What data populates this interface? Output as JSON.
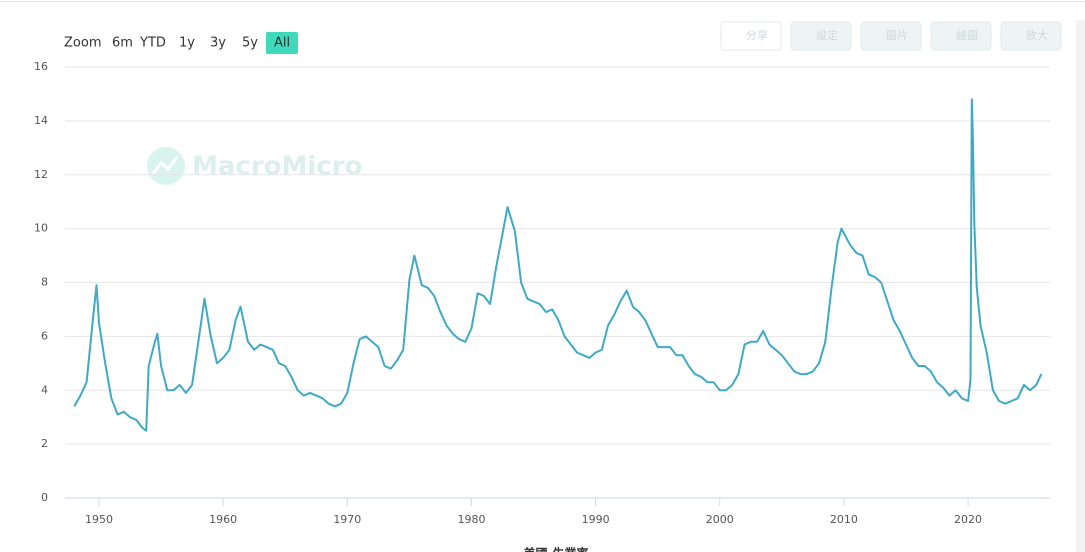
{
  "chart_data": {
    "type": "line",
    "zoom_label": "Zoom",
    "range_buttons": [
      "6m",
      "YTD",
      "1y",
      "3y",
      "5y",
      "All"
    ],
    "selected_range": "All",
    "toolbar_buttons": [
      "分享",
      "設定",
      "圖片",
      "繪圖",
      "放大"
    ],
    "watermark": "MacroMicro",
    "xlim": [
      1947.26,
      2026.6
    ],
    "xticks": [
      1950,
      1960,
      1970,
      1980,
      1990,
      2000,
      2010,
      2020
    ],
    "ylim": [
      0,
      16
    ],
    "yticks": [
      0,
      2,
      4,
      6,
      8,
      10,
      12,
      14,
      16
    ],
    "grid": true,
    "x": [
      1948.0,
      1948.5,
      1949.0,
      1949.5,
      1949.8,
      1950.0,
      1950.5,
      1951.0,
      1951.5,
      1952.0,
      1952.5,
      1953.0,
      1953.5,
      1953.8,
      1954.0,
      1954.5,
      1954.7,
      1955.0,
      1955.5,
      1956.0,
      1956.5,
      1957.0,
      1957.5,
      1958.0,
      1958.5,
      1959.0,
      1959.5,
      1960.0,
      1960.5,
      1961.0,
      1961.4,
      1962.0,
      1962.5,
      1963.0,
      1963.5,
      1964.0,
      1964.5,
      1965.0,
      1965.5,
      1966.0,
      1966.5,
      1967.0,
      1967.5,
      1968.0,
      1968.5,
      1969.0,
      1969.5,
      1970.0,
      1970.5,
      1971.0,
      1971.5,
      1972.0,
      1972.5,
      1973.0,
      1973.5,
      1974.0,
      1974.5,
      1975.0,
      1975.4,
      1976.0,
      1976.5,
      1977.0,
      1977.5,
      1978.0,
      1978.5,
      1979.0,
      1979.5,
      1980.0,
      1980.5,
      1981.0,
      1981.5,
      1982.0,
      1982.5,
      1982.9,
      1983.5,
      1984.0,
      1984.5,
      1985.0,
      1985.5,
      1986.0,
      1986.5,
      1987.0,
      1987.5,
      1988.0,
      1988.5,
      1989.0,
      1989.5,
      1990.0,
      1990.5,
      1991.0,
      1991.5,
      1992.0,
      1992.5,
      1993.0,
      1993.5,
      1994.0,
      1994.5,
      1995.0,
      1995.5,
      1996.0,
      1996.5,
      1997.0,
      1997.5,
      1998.0,
      1998.5,
      1999.0,
      1999.5,
      2000.0,
      2000.5,
      2001.0,
      2001.5,
      2002.0,
      2002.5,
      2003.0,
      2003.5,
      2004.0,
      2004.5,
      2005.0,
      2005.5,
      2006.0,
      2006.5,
      2007.0,
      2007.5,
      2008.0,
      2008.5,
      2009.0,
      2009.5,
      2009.8,
      2010.5,
      2011.0,
      2011.5,
      2012.0,
      2012.5,
      2013.0,
      2013.5,
      2014.0,
      2014.5,
      2015.0,
      2015.5,
      2016.0,
      2016.5,
      2017.0,
      2017.5,
      2018.0,
      2018.5,
      2019.0,
      2019.5,
      2020.0,
      2020.2,
      2020.3,
      2020.4,
      2020.5,
      2020.7,
      2021.0,
      2021.5,
      2022.0,
      2022.5,
      2023.0,
      2023.5,
      2024.0,
      2024.5,
      2025.0,
      2025.5,
      2025.9
    ],
    "series": [
      {
        "name": "美國-失業率",
        "color": "#3fa9c6",
        "values": [
          3.4,
          3.8,
          4.3,
          6.6,
          7.9,
          6.5,
          5.0,
          3.7,
          3.1,
          3.2,
          3.0,
          2.9,
          2.6,
          2.5,
          4.9,
          5.8,
          6.1,
          4.9,
          4.0,
          4.0,
          4.2,
          3.9,
          4.2,
          5.8,
          7.4,
          6.0,
          5.0,
          5.2,
          5.5,
          6.6,
          7.1,
          5.8,
          5.5,
          5.7,
          5.6,
          5.5,
          5.0,
          4.9,
          4.5,
          4.0,
          3.8,
          3.9,
          3.8,
          3.7,
          3.5,
          3.4,
          3.5,
          3.9,
          5.0,
          5.9,
          6.0,
          5.8,
          5.6,
          4.9,
          4.8,
          5.1,
          5.5,
          8.1,
          9.0,
          7.9,
          7.8,
          7.5,
          6.9,
          6.4,
          6.1,
          5.9,
          5.8,
          6.3,
          7.6,
          7.5,
          7.2,
          8.6,
          9.8,
          10.8,
          9.9,
          8.0,
          7.4,
          7.3,
          7.2,
          6.9,
          7.0,
          6.6,
          6.0,
          5.7,
          5.4,
          5.3,
          5.2,
          5.4,
          5.5,
          6.4,
          6.8,
          7.3,
          7.7,
          7.1,
          6.9,
          6.6,
          6.1,
          5.6,
          5.6,
          5.6,
          5.3,
          5.3,
          4.9,
          4.6,
          4.5,
          4.3,
          4.3,
          4.0,
          4.0,
          4.2,
          4.6,
          5.7,
          5.8,
          5.8,
          6.2,
          5.7,
          5.5,
          5.3,
          5.0,
          4.7,
          4.6,
          4.6,
          4.7,
          5.0,
          5.8,
          7.8,
          9.5,
          10.0,
          9.4,
          9.1,
          9.0,
          8.3,
          8.2,
          8.0,
          7.3,
          6.6,
          6.2,
          5.7,
          5.2,
          4.9,
          4.9,
          4.7,
          4.3,
          4.1,
          3.8,
          4.0,
          3.7,
          3.6,
          4.4,
          14.8,
          13.2,
          10.2,
          7.8,
          6.4,
          5.4,
          4.0,
          3.6,
          3.5,
          3.6,
          3.7,
          4.2,
          4.0,
          4.2,
          4.6
        ]
      }
    ]
  }
}
